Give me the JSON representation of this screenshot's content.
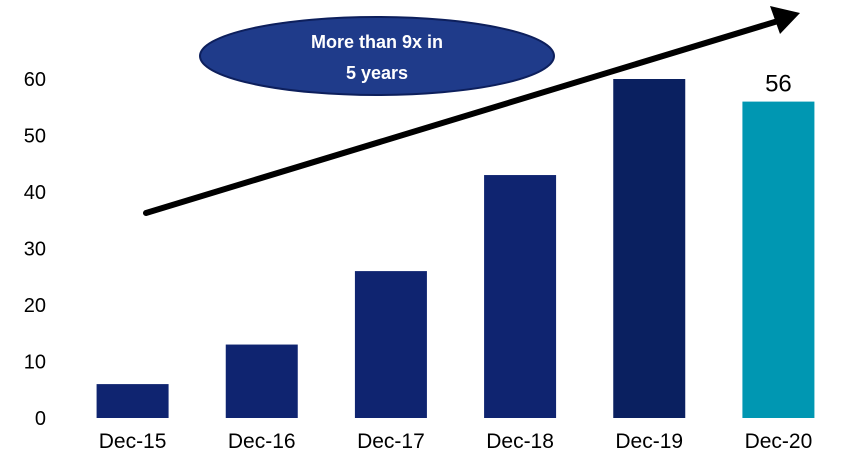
{
  "chart_data": {
    "type": "bar",
    "categories": [
      "Dec-15",
      "Dec-16",
      "Dec-17",
      "Dec-18",
      "Dec-19",
      "Dec-20"
    ],
    "values": [
      6,
      13,
      26,
      43,
      60,
      56
    ],
    "bar_colors": [
      "#0f2470",
      "#0f2470",
      "#0f2470",
      "#0f2470",
      "#0a2060",
      "#0097b2"
    ],
    "data_labels": [
      {
        "index": 5,
        "text": "56"
      }
    ],
    "ylim": [
      0,
      60
    ],
    "yticks": [
      0,
      10,
      20,
      30,
      40,
      50,
      60
    ],
    "grid": false,
    "legend": "none",
    "title": "",
    "xlabel": "",
    "ylabel": "",
    "annotation": {
      "lines": [
        "More than 9x in",
        "5 years"
      ],
      "fill_color": "#1f3b8a",
      "arrow_color": "#000000"
    }
  }
}
